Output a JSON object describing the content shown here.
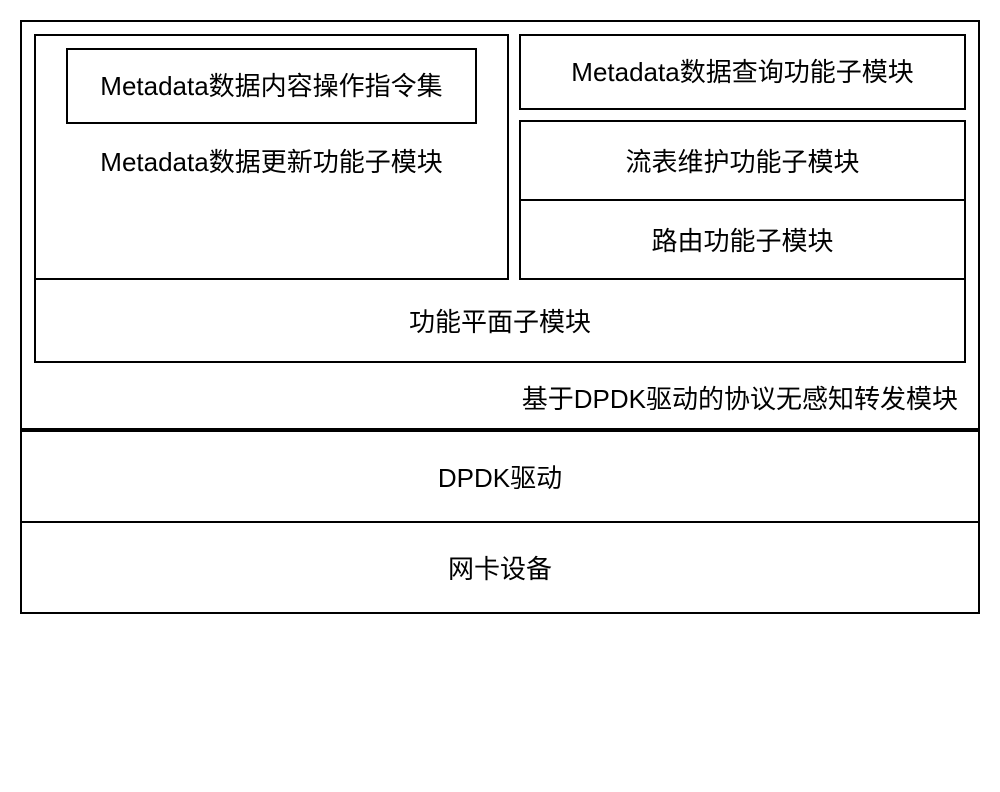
{
  "diagram": {
    "outer": {
      "left_module": {
        "inner_box": "Metadata数据内容操作指令集",
        "label": "Metadata数据更新功能子模块"
      },
      "right_column": {
        "top": "Metadata数据查询功能子模块",
        "flow_table": "流表维护功能子模块",
        "routing": "路由功能子模块"
      },
      "function_plane": "功能平面子模块",
      "forward_module_label": "基于DPDK驱动的协议无感知转发模块"
    },
    "dpdk_driver": "DPDK驱动",
    "nic_device": "网卡设备"
  },
  "style": {
    "border_color": "#000000",
    "border_width": 2,
    "background_color": "#ffffff",
    "font_size_main": 26,
    "font_family": "Microsoft YaHei",
    "diagram_width": 960
  }
}
